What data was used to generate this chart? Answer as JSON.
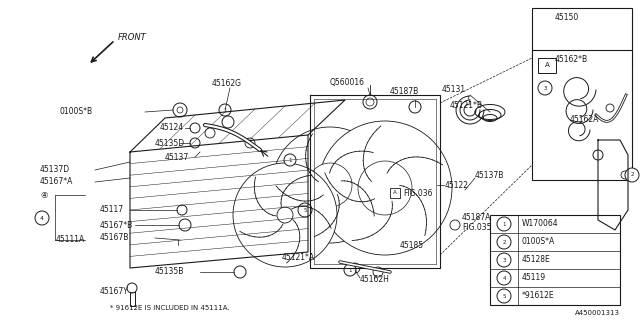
{
  "bg_color": "#ffffff",
  "line_color": "#1a1a1a",
  "fig_width": 6.4,
  "fig_height": 3.2,
  "dpi": 100,
  "legend_items": [
    {
      "num": "1",
      "code": "W170064"
    },
    {
      "num": "2",
      "code": "0100S*A"
    },
    {
      "num": "3",
      "code": "45128E"
    },
    {
      "num": "4",
      "code": "45119"
    },
    {
      "num": "5",
      "code": "*91612E"
    }
  ],
  "footer": "A450001313",
  "note": "* 91612E IS INCLUDED IN 45111A."
}
